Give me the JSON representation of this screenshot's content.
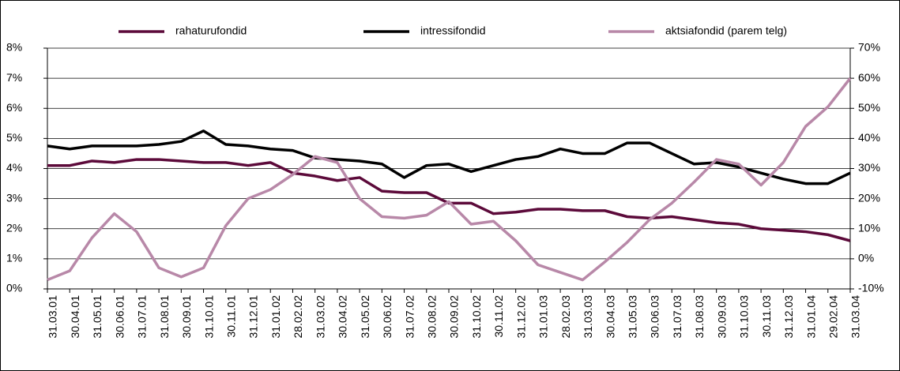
{
  "chart_data": {
    "type": "line",
    "categories": [
      "31.03.01",
      "30.04.01",
      "31.05.01",
      "30.06.01",
      "31.07.01",
      "31.08.01",
      "30.09.01",
      "31.10.01",
      "30.11.01",
      "31.12.01",
      "31.01.02",
      "28.02.02",
      "31.03.02",
      "30.04.02",
      "31.05.02",
      "30.06.02",
      "31.07.02",
      "30.08.02",
      "30.09.02",
      "31.10.02",
      "30.11.02",
      "31.12.02",
      "31.01.03",
      "28.02.03",
      "31.03.03",
      "30.04.03",
      "31.05.03",
      "30.06.03",
      "31.07.03",
      "31.08.03",
      "30.09.03",
      "31.10.03",
      "30.11.03",
      "31.12.03",
      "31.01.04",
      "29.02.04",
      "31.03.04"
    ],
    "series": [
      {
        "name": "rahaturufondid",
        "color": "#5c0a3a",
        "values": [
          4.1,
          4.1,
          4.25,
          4.2,
          4.3,
          4.3,
          4.25,
          4.2,
          4.2,
          4.1,
          4.2,
          3.85,
          3.75,
          3.6,
          3.7,
          3.25,
          3.2,
          3.2,
          2.85,
          2.85,
          2.5,
          2.55,
          2.65,
          2.65,
          2.6,
          2.6,
          2.4,
          2.35,
          2.4,
          2.3,
          2.2,
          2.15,
          2.0,
          1.95,
          1.9,
          1.8,
          1.6
        ]
      },
      {
        "name": "intressifondid",
        "color": "#000000",
        "values": [
          4.75,
          4.65,
          4.75,
          4.75,
          4.75,
          4.8,
          4.9,
          5.25,
          4.8,
          4.75,
          4.65,
          4.6,
          4.35,
          4.3,
          4.25,
          4.15,
          3.7,
          4.1,
          4.15,
          3.9,
          4.1,
          4.3,
          4.4,
          4.65,
          4.5,
          4.5,
          4.85,
          4.85,
          4.5,
          4.15,
          4.2,
          4.05,
          3.85,
          3.65,
          3.5,
          3.5,
          3.85
        ]
      },
      {
        "name": "aktsiafondid (parem telg)",
        "color": "#b888a8",
        "axis": "y2",
        "values": [
          -7,
          -4,
          7,
          15,
          9,
          -3,
          -6,
          -3,
          11,
          20,
          23,
          28,
          34,
          32,
          20,
          14,
          13.5,
          14.5,
          19,
          11.5,
          12.5,
          6,
          -2,
          -4.5,
          -7,
          -1,
          5.5,
          13,
          18.5,
          25.5,
          33,
          31.5,
          24.5,
          32,
          44,
          50.5,
          60
        ]
      }
    ],
    "ylim": [
      0,
      8
    ],
    "yticks": [
      {
        "value": 0,
        "label": "0%"
      },
      {
        "value": 1,
        "label": "1%"
      },
      {
        "value": 2,
        "label": "2%"
      },
      {
        "value": 3,
        "label": "3%"
      },
      {
        "value": 4,
        "label": "4%"
      },
      {
        "value": 5,
        "label": "5%"
      },
      {
        "value": 6,
        "label": "6%"
      },
      {
        "value": 7,
        "label": "7%"
      },
      {
        "value": 8,
        "label": "8%"
      }
    ],
    "y2lim": [
      -10,
      70
    ],
    "y2ticks": [
      {
        "value": -10,
        "label": "-10%"
      },
      {
        "value": 0,
        "label": "0%"
      },
      {
        "value": 10,
        "label": "10%"
      },
      {
        "value": 20,
        "label": "20%"
      },
      {
        "value": 30,
        "label": "30%"
      },
      {
        "value": 40,
        "label": "40%"
      },
      {
        "value": 50,
        "label": "50%"
      },
      {
        "value": 60,
        "label": "60%"
      },
      {
        "value": 70,
        "label": "70%"
      }
    ],
    "grid": true
  }
}
